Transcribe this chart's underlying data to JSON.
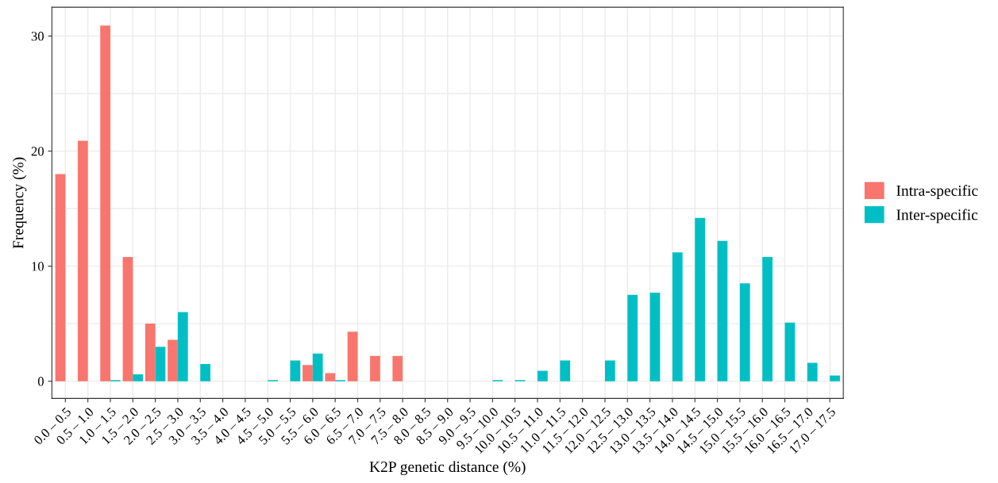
{
  "chart_data": {
    "type": "bar",
    "xlabel": "K2P genetic distance (%)",
    "ylabel": "Frequency (%)",
    "categories": [
      "0.0 – 0.5",
      "0.5 – 1.0",
      "1.0 – 1.5",
      "1.5 – 2.0",
      "2.0 – 2.5",
      "2.5 – 3.0",
      "3.0 – 3.5",
      "3.5 – 4.0",
      "4.0 – 4.5",
      "4.5 – 5.0",
      "5.0 – 5.5",
      "5.5 – 6.0",
      "6.0 – 6.5",
      "6.5 – 7.0",
      "7.0 – 7.5",
      "7.5 – 8.0",
      "8.0 – 8.5",
      "8.5 – 9.0",
      "9.0 – 9.5",
      "9.5 – 10.0",
      "10.0 – 10.5",
      "10.5 – 11.0",
      "11.0 – 11.5",
      "11.5 – 12.0",
      "12.0 – 12.5",
      "12.5 – 13.0",
      "13.0 – 13.5",
      "13.5 – 14.0",
      "14.0 – 14.5",
      "14.5 – 15.0",
      "15.0 – 15.5",
      "15.5 – 16.0",
      "16.0 – 16.5",
      "16.5 – 17.0",
      "17.0 – 17.5"
    ],
    "series": [
      {
        "name": "Intra-specific",
        "color": "#f8766d",
        "values": [
          18.0,
          20.9,
          30.9,
          10.8,
          5.0,
          3.6,
          null,
          null,
          null,
          null,
          null,
          1.4,
          0.7,
          4.3,
          2.2,
          2.2,
          null,
          null,
          null,
          null,
          null,
          null,
          null,
          null,
          null,
          null,
          null,
          null,
          null,
          null,
          null,
          null,
          null,
          null,
          null
        ]
      },
      {
        "name": "Inter-specific",
        "color": "#00bfc4",
        "values": [
          null,
          null,
          0.1,
          0.6,
          3.0,
          6.0,
          1.5,
          null,
          null,
          0.1,
          1.8,
          2.4,
          0.1,
          null,
          null,
          null,
          null,
          null,
          null,
          0.1,
          0.1,
          0.9,
          1.8,
          null,
          1.8,
          7.5,
          7.7,
          11.2,
          14.2,
          12.2,
          8.5,
          10.8,
          5.1,
          1.6,
          0.5
        ]
      }
    ],
    "ylim": [
      -1.5,
      32.5
    ],
    "yticks": [
      0,
      {
        "value": 5,
        "label": null
      },
      10,
      {
        "value": 15,
        "label": null
      },
      20,
      {
        "value": 25,
        "label": null
      },
      30
    ],
    "grid": true,
    "legend": "right"
  }
}
